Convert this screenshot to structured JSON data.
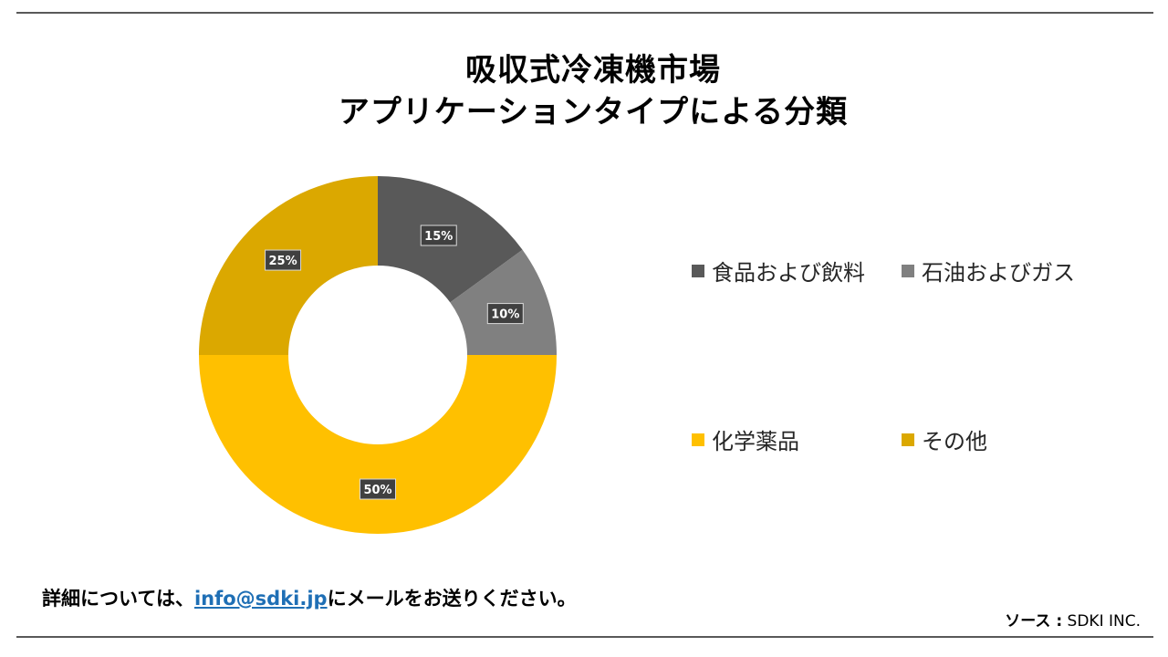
{
  "title": {
    "line1": "吸収式冷凍機市場",
    "line2": "アプリケーションタイプによる分類"
  },
  "chart_data": {
    "type": "pie",
    "donut": true,
    "legend_position": "right",
    "categories": [
      "食品および飲料",
      "石油およびガス",
      "化学薬品",
      "その他"
    ],
    "values": [
      15,
      10,
      50,
      25
    ],
    "data_labels": [
      "15%",
      "10%",
      "50%",
      "25%"
    ],
    "colors": [
      "#595959",
      "#808080",
      "#ffc000",
      "#dba800"
    ]
  },
  "footer": {
    "prefix": "詳細については、",
    "email": "info@sdki.jp",
    "suffix": "にメールをお送りください。"
  },
  "source": {
    "label": "ソース  :",
    "value": "SDKI INC."
  }
}
